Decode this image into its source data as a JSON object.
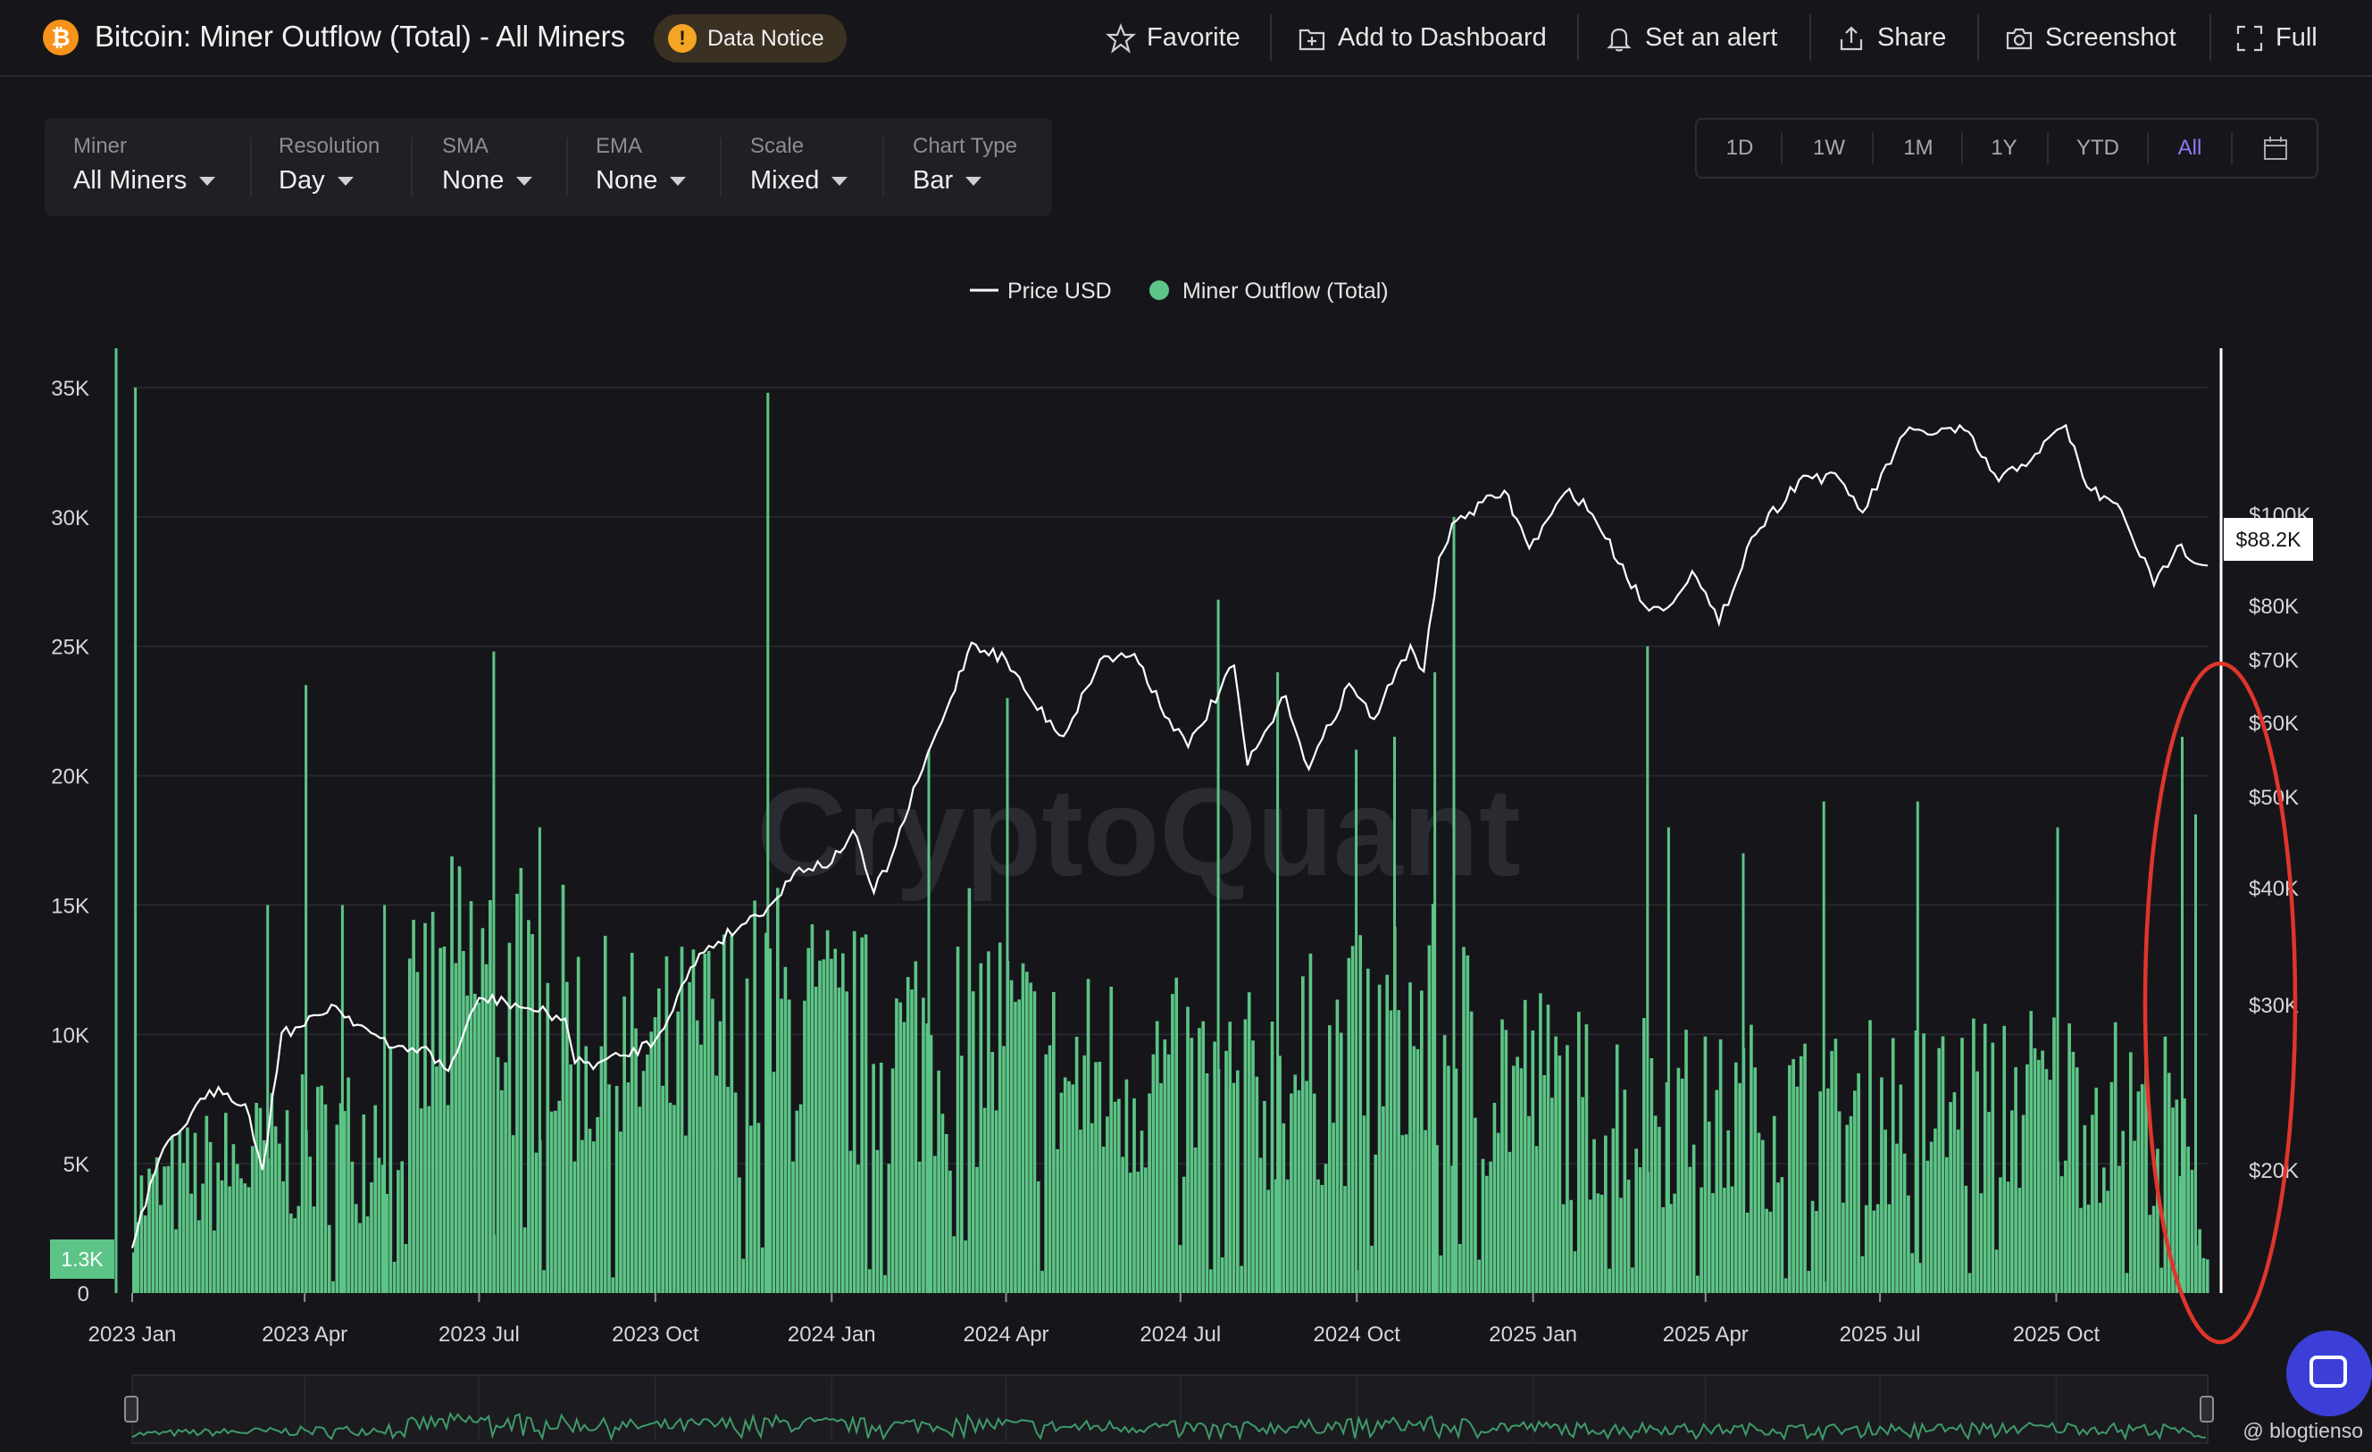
{
  "header": {
    "coin_symbol": "₿",
    "title": "Bitcoin: Miner Outflow (Total) - All Miners",
    "notice_label": "Data Notice",
    "actions": [
      {
        "label": "Favorite",
        "icon": "star-icon"
      },
      {
        "label": "Add to Dashboard",
        "icon": "add-dashboard-icon"
      },
      {
        "label": "Set an alert",
        "icon": "bell-icon"
      },
      {
        "label": "Share",
        "icon": "share-icon"
      },
      {
        "label": "Screenshot",
        "icon": "camera-icon"
      },
      {
        "label": "Full",
        "icon": "fullscreen-icon"
      }
    ]
  },
  "filters": [
    {
      "label": "Miner",
      "value": "All Miners"
    },
    {
      "label": "Resolution",
      "value": "Day"
    },
    {
      "label": "SMA",
      "value": "None"
    },
    {
      "label": "EMA",
      "value": "None"
    },
    {
      "label": "Scale",
      "value": "Mixed"
    },
    {
      "label": "Chart Type",
      "value": "Bar"
    }
  ],
  "range_buttons": [
    "1D",
    "1W",
    "1M",
    "1Y",
    "YTD",
    "All"
  ],
  "range_active": "All",
  "colors": {
    "bar": "#5cc486",
    "price": "#ffffff",
    "accent": "#8b7cf6",
    "annotation": "#e0352b",
    "background": "#16161a"
  },
  "watermark": "CryptoQuant",
  "credit": "@ blogtienso",
  "chart_data": {
    "type": "bar",
    "legend": [
      {
        "name": "Price USD",
        "marker": "line"
      },
      {
        "name": "Miner Outflow (Total)",
        "marker": "dot"
      }
    ],
    "legend_position": "top-center",
    "x_ticks": [
      "2023 Jan",
      "2023 Apr",
      "2023 Jul",
      "2023 Oct",
      "2024 Jan",
      "2024 Apr",
      "2024 Jul",
      "2024 Oct",
      "2025 Jan",
      "2025 Apr",
      "2025 Jul",
      "2025 Oct"
    ],
    "x_range": [
      "2023-01-01",
      "2025-12-19"
    ],
    "left_axis": {
      "ticks": [
        0,
        5000,
        10000,
        15000,
        20000,
        25000,
        30000,
        35000
      ],
      "tick_labels": [
        "0",
        "5K",
        "10K",
        "15K",
        "20K",
        "25K",
        "30K",
        "35K"
      ],
      "ylim": [
        0,
        35000
      ]
    },
    "right_axis": {
      "scale": "log",
      "ticks": [
        20000,
        30000,
        40000,
        50000,
        60000,
        70000,
        80000,
        100000
      ],
      "tick_labels": [
        "$20K",
        "$30K",
        "$40K",
        "$50K",
        "$60K",
        "$70K",
        "$80K",
        "$100K"
      ]
    },
    "last_outflow_label": "1.3K",
    "last_price_label": "$88.2K",
    "grid": true,
    "series": [
      {
        "name": "Miner Outflow (Total)",
        "axis": "left",
        "kind": "bar",
        "points": [
          [
            "2023-01-01",
            3500
          ],
          [
            "2023-02-01",
            4500
          ],
          [
            "2023-03-01",
            5000
          ],
          [
            "2023-04-01",
            5500
          ],
          [
            "2023-05-01",
            6000
          ],
          [
            "2023-06-01",
            10000
          ],
          [
            "2023-07-01",
            12000
          ],
          [
            "2023-08-01",
            11000
          ],
          [
            "2023-09-01",
            9000
          ],
          [
            "2023-10-01",
            8500
          ],
          [
            "2023-11-01",
            9500
          ],
          [
            "2023-12-01",
            10500
          ],
          [
            "2024-01-01",
            9500
          ],
          [
            "2024-02-01",
            9000
          ],
          [
            "2024-03-01",
            10500
          ],
          [
            "2024-04-01",
            9500
          ],
          [
            "2024-05-01",
            8000
          ],
          [
            "2024-06-01",
            8500
          ],
          [
            "2024-07-01",
            8000
          ],
          [
            "2024-08-01",
            7500
          ],
          [
            "2024-09-01",
            8500
          ],
          [
            "2024-10-01",
            9000
          ],
          [
            "2024-11-01",
            10000
          ],
          [
            "2024-12-01",
            9000
          ],
          [
            "2025-01-01",
            8000
          ],
          [
            "2025-02-01",
            7000
          ],
          [
            "2025-03-01",
            7500
          ],
          [
            "2025-04-01",
            6500
          ],
          [
            "2025-05-01",
            7000
          ],
          [
            "2025-06-01",
            6500
          ],
          [
            "2025-07-01",
            7000
          ],
          [
            "2025-08-01",
            7000
          ],
          [
            "2025-09-01",
            7500
          ],
          [
            "2025-10-01",
            7500
          ],
          [
            "2025-11-01",
            7000
          ],
          [
            "2025-12-01",
            6500
          ],
          [
            "2025-12-19",
            1300
          ]
        ],
        "spikes": [
          [
            "2023-01-02",
            35000
          ],
          [
            "2023-03-12",
            15000
          ],
          [
            "2023-04-01",
            23500
          ],
          [
            "2023-04-20",
            15000
          ],
          [
            "2023-05-12",
            15000
          ],
          [
            "2023-06-20",
            16500
          ],
          [
            "2023-07-08",
            24800
          ],
          [
            "2023-08-01",
            18000
          ],
          [
            "2023-11-28",
            34800
          ],
          [
            "2024-02-20",
            21000
          ],
          [
            "2024-04-01",
            23000
          ],
          [
            "2024-07-20",
            26800
          ],
          [
            "2024-08-20",
            24000
          ],
          [
            "2024-09-30",
            21000
          ],
          [
            "2024-10-20",
            21500
          ],
          [
            "2024-11-10",
            24000
          ],
          [
            "2024-11-20",
            30000
          ],
          [
            "2025-03-01",
            25000
          ],
          [
            "2025-03-12",
            18000
          ],
          [
            "2025-04-20",
            17000
          ],
          [
            "2025-06-01",
            19000
          ],
          [
            "2025-07-20",
            19000
          ],
          [
            "2025-10-01",
            18000
          ],
          [
            "2025-12-05",
            21500
          ],
          [
            "2025-12-12",
            18500
          ]
        ]
      },
      {
        "name": "Price USD",
        "axis": "right",
        "kind": "line",
        "points": [
          [
            "2023-01-01",
            16500
          ],
          [
            "2023-01-15",
            20500
          ],
          [
            "2023-02-01",
            23000
          ],
          [
            "2023-02-15",
            24500
          ],
          [
            "2023-03-01",
            23500
          ],
          [
            "2023-03-10",
            20000
          ],
          [
            "2023-03-20",
            28000
          ],
          [
            "2023-04-01",
            28500
          ],
          [
            "2023-04-15",
            30000
          ],
          [
            "2023-05-01",
            28500
          ],
          [
            "2023-05-15",
            27000
          ],
          [
            "2023-06-01",
            27000
          ],
          [
            "2023-06-15",
            25500
          ],
          [
            "2023-07-01",
            30500
          ],
          [
            "2023-07-15",
            30200
          ],
          [
            "2023-08-01",
            29500
          ],
          [
            "2023-08-15",
            29000
          ],
          [
            "2023-08-20",
            26000
          ],
          [
            "2023-09-01",
            26000
          ],
          [
            "2023-09-15",
            26500
          ],
          [
            "2023-10-01",
            27500
          ],
          [
            "2023-10-24",
            34000
          ],
          [
            "2023-11-15",
            36500
          ],
          [
            "2023-12-01",
            38500
          ],
          [
            "2023-12-15",
            42000
          ],
          [
            "2024-01-01",
            42500
          ],
          [
            "2024-01-12",
            46000
          ],
          [
            "2024-01-23",
            39500
          ],
          [
            "2024-02-01",
            43000
          ],
          [
            "2024-02-15",
            52000
          ],
          [
            "2024-03-01",
            62000
          ],
          [
            "2024-03-14",
            73000
          ],
          [
            "2024-04-01",
            70000
          ],
          [
            "2024-04-15",
            63000
          ],
          [
            "2024-05-01",
            58000
          ],
          [
            "2024-05-20",
            70000
          ],
          [
            "2024-06-07",
            71000
          ],
          [
            "2024-06-25",
            60500
          ],
          [
            "2024-07-05",
            56500
          ],
          [
            "2024-07-29",
            69000
          ],
          [
            "2024-08-05",
            54000
          ],
          [
            "2024-08-25",
            64000
          ],
          [
            "2024-09-06",
            53500
          ],
          [
            "2024-09-27",
            66000
          ],
          [
            "2024-10-10",
            60500
          ],
          [
            "2024-10-29",
            72500
          ],
          [
            "2024-11-05",
            68000
          ],
          [
            "2024-11-13",
            90000
          ],
          [
            "2024-11-22",
            98500
          ],
          [
            "2024-12-17",
            106000
          ],
          [
            "2024-12-30",
            92000
          ],
          [
            "2025-01-20",
            106500
          ],
          [
            "2025-02-01",
            100000
          ],
          [
            "2025-02-28",
            80000
          ],
          [
            "2025-03-10",
            79000
          ],
          [
            "2025-03-25",
            87000
          ],
          [
            "2025-04-08",
            76500
          ],
          [
            "2025-04-25",
            94500
          ],
          [
            "2025-05-22",
            110000
          ],
          [
            "2025-06-10",
            109000
          ],
          [
            "2025-06-22",
            100500
          ],
          [
            "2025-07-14",
            122000
          ],
          [
            "2025-08-14",
            123000
          ],
          [
            "2025-09-01",
            108500
          ],
          [
            "2025-09-20",
            116000
          ],
          [
            "2025-10-06",
            124500
          ],
          [
            "2025-10-17",
            107000
          ],
          [
            "2025-11-04",
            101000
          ],
          [
            "2025-11-21",
            84000
          ],
          [
            "2025-12-03",
            92500
          ],
          [
            "2025-12-19",
            88200
          ]
        ]
      }
    ]
  }
}
